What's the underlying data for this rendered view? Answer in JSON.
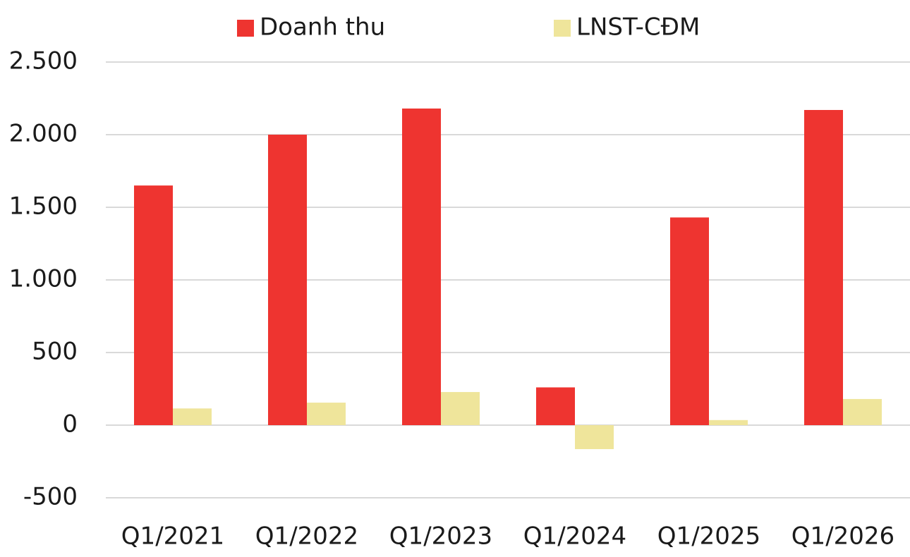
{
  "chart_data": {
    "type": "bar",
    "categories": [
      "Q1/2021",
      "Q1/2022",
      "Q1/2023",
      "Q1/2024",
      "Q1/2025",
      "Q1/2026"
    ],
    "series": [
      {
        "name": "Doanh thu",
        "color": "#ee3430",
        "values": [
          1650,
          2000,
          2180,
          260,
          1430,
          2170
        ]
      },
      {
        "name": "LNST-CĐM",
        "color": "#efe59b",
        "values": [
          115,
          155,
          228,
          -165,
          35,
          180
        ]
      }
    ],
    "ylim": [
      -500,
      2500
    ],
    "yticks": [
      -500,
      0,
      500,
      {
        "value": 1000,
        "label": "1.000"
      },
      {
        "value": 1500,
        "label": "1.500"
      },
      {
        "value": 2000,
        "label": "2.000"
      },
      {
        "value": 2500,
        "label": "2.500"
      }
    ],
    "grid": true
  }
}
